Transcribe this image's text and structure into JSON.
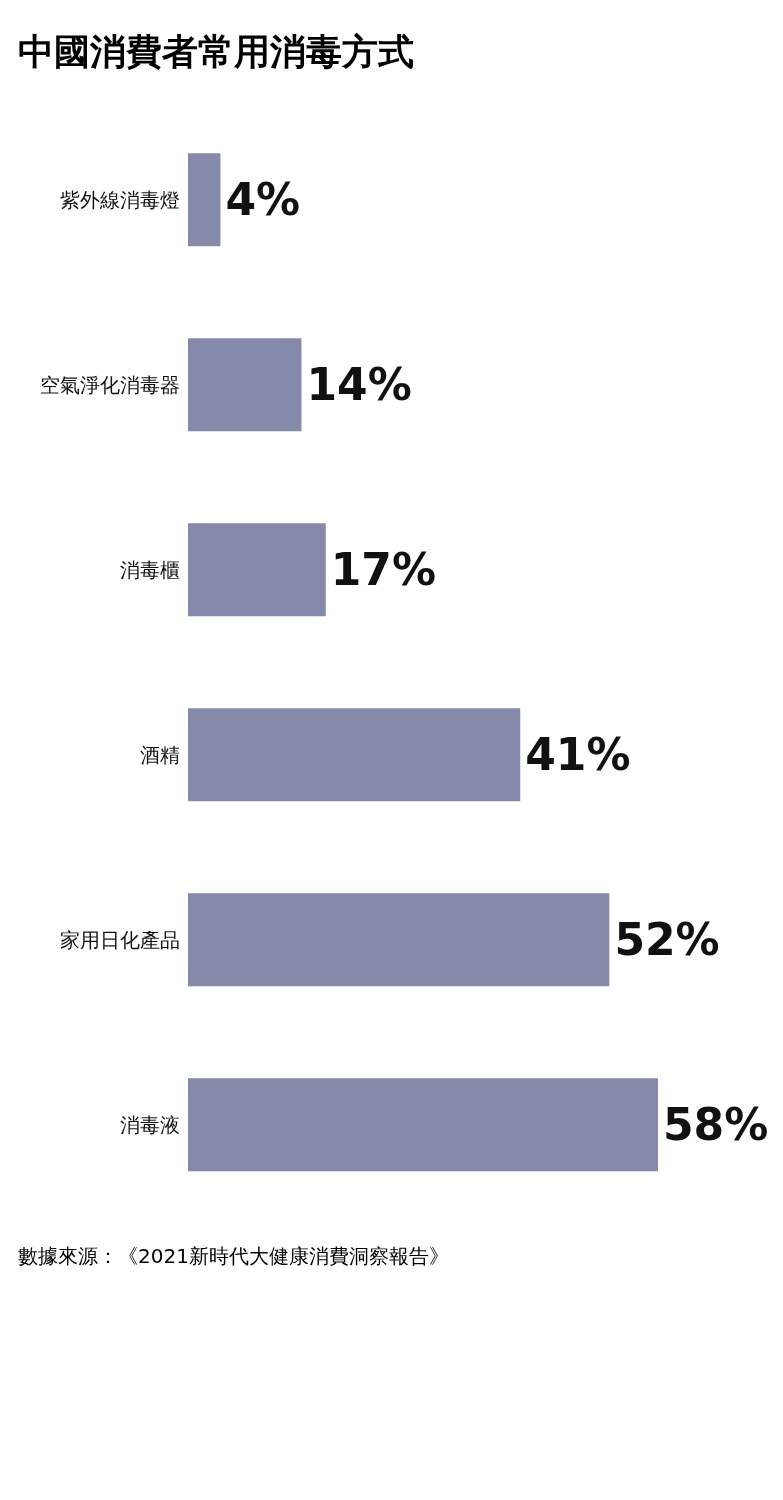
{
  "chart_data": {
    "type": "bar",
    "orientation": "horizontal",
    "title": "中國消費者常用消毒方式",
    "categories": [
      "紫外線消毒燈",
      "空氣淨化消毒器",
      "消毒櫃",
      "酒精",
      "家用日化產品",
      "消毒液"
    ],
    "values": [
      4,
      14,
      17,
      41,
      52,
      58
    ],
    "color": "#8589aa",
    "value_labels": [
      "4%",
      "14%",
      "17%",
      "41%",
      "52%",
      "58%"
    ],
    "annotations": [
      "數據來源：《2021新時代大健康消費洞察報告》"
    ]
  }
}
